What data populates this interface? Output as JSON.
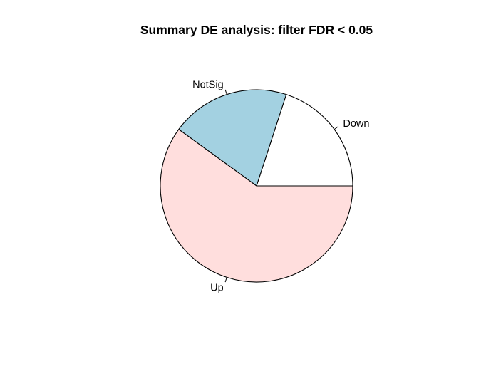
{
  "chart_data": {
    "type": "pie",
    "title": "Summary DE analysis: filter FDR < 0.05",
    "start_angle_deg": 0,
    "direction": "counterclockwise",
    "border_color": "#000000",
    "slices": [
      {
        "label": "Down",
        "value": 0.2,
        "color": "#ffffff"
      },
      {
        "label": "NotSig",
        "value": 0.2,
        "color": "#a3d1e1"
      },
      {
        "label": "Up",
        "value": 0.6,
        "color": "#ffdedd"
      }
    ]
  }
}
